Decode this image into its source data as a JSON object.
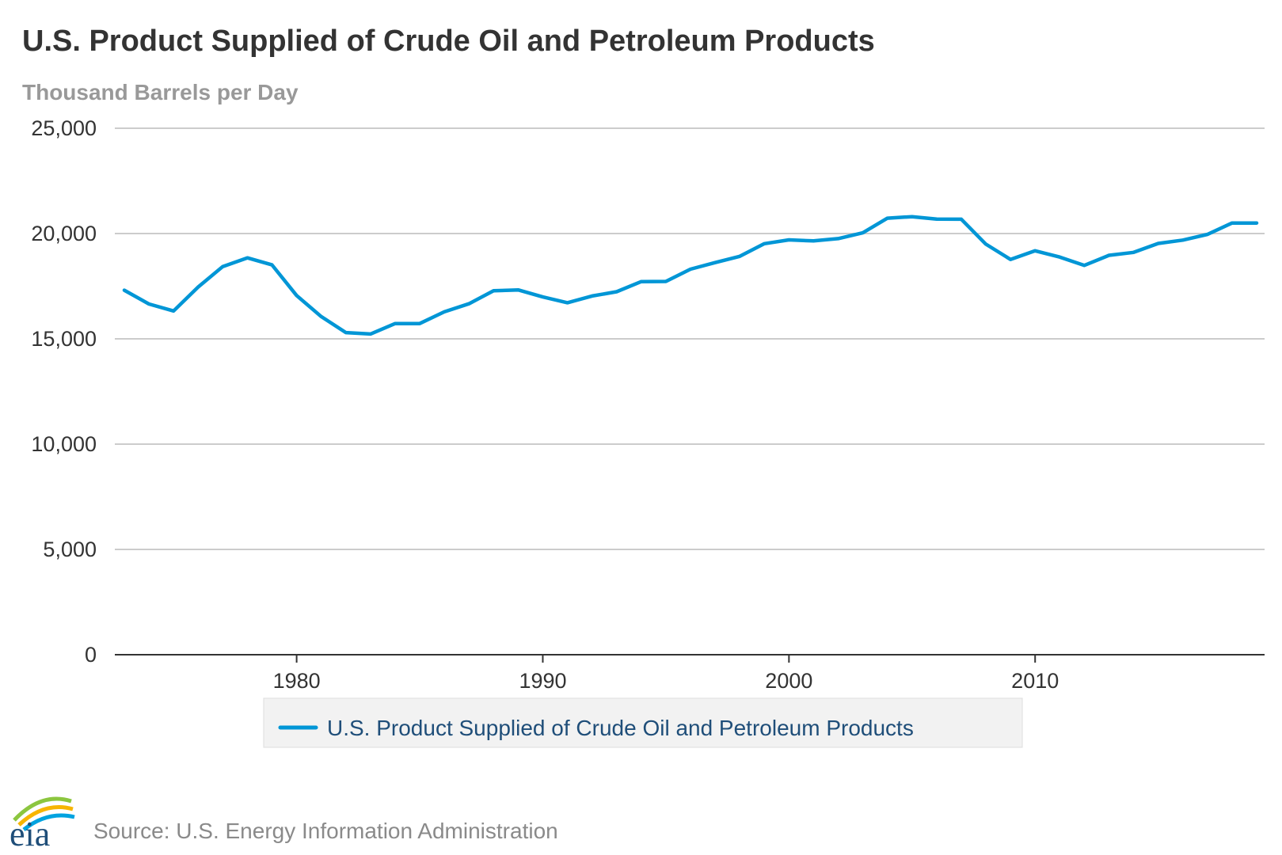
{
  "chart_data": {
    "type": "line",
    "title": "U.S. Product Supplied of Crude Oil and Petroleum Products",
    "subtitle": "Thousand Barrels per Day",
    "xlabel": "",
    "ylabel": "",
    "xlim": [
      1973,
      2019
    ],
    "ylim": [
      0,
      25000
    ],
    "y_ticks": [
      0,
      5000,
      10000,
      15000,
      20000,
      25000
    ],
    "y_tick_labels": [
      "0",
      "5,000",
      "10,000",
      "15,000",
      "20,000",
      "25,000"
    ],
    "x_ticks": [
      1980,
      1990,
      2000,
      2010
    ],
    "x_tick_labels": [
      "1980",
      "1990",
      "2000",
      "2010"
    ],
    "grid": true,
    "legend_position": "bottom-center",
    "series": [
      {
        "name": "U.S. Product Supplied of Crude Oil and Petroleum Products",
        "color": "#0096d6",
        "x": [
          1973,
          1974,
          1975,
          1976,
          1977,
          1978,
          1979,
          1980,
          1981,
          1982,
          1983,
          1984,
          1985,
          1986,
          1987,
          1988,
          1989,
          1990,
          1991,
          1992,
          1993,
          1994,
          1995,
          1996,
          1997,
          1998,
          1999,
          2000,
          2001,
          2002,
          2003,
          2004,
          2005,
          2006,
          2007,
          2008,
          2009,
          2010,
          2011,
          2012,
          2013,
          2014,
          2015,
          2016,
          2017,
          2018,
          2019
        ],
        "values": [
          17308,
          16653,
          16322,
          17461,
          18431,
          18847,
          18513,
          17056,
          16058,
          15296,
          15231,
          15726,
          15726,
          16281,
          16665,
          17283,
          17325,
          16988,
          16714,
          17033,
          17237,
          17718,
          17725,
          18309,
          18620,
          18917,
          19519,
          19701,
          19649,
          19761,
          20034,
          20731,
          20802,
          20687,
          20680,
          19498,
          18771,
          19180,
          18882,
          18490,
          18967,
          19106,
          19531,
          19687,
          19958,
          20500,
          20500
        ]
      }
    ]
  },
  "source": {
    "text": "Source: U.S. Energy Information Administration",
    "logo_text": "eia",
    "logo_colors": [
      "#8cc63f",
      "#f7b500",
      "#00a3e0",
      "#1f4e79"
    ]
  },
  "colors": {
    "grid": "#cccccc",
    "axis": "#333333",
    "legend_bg": "#f2f2f2",
    "legend_border": "#dddddd"
  }
}
